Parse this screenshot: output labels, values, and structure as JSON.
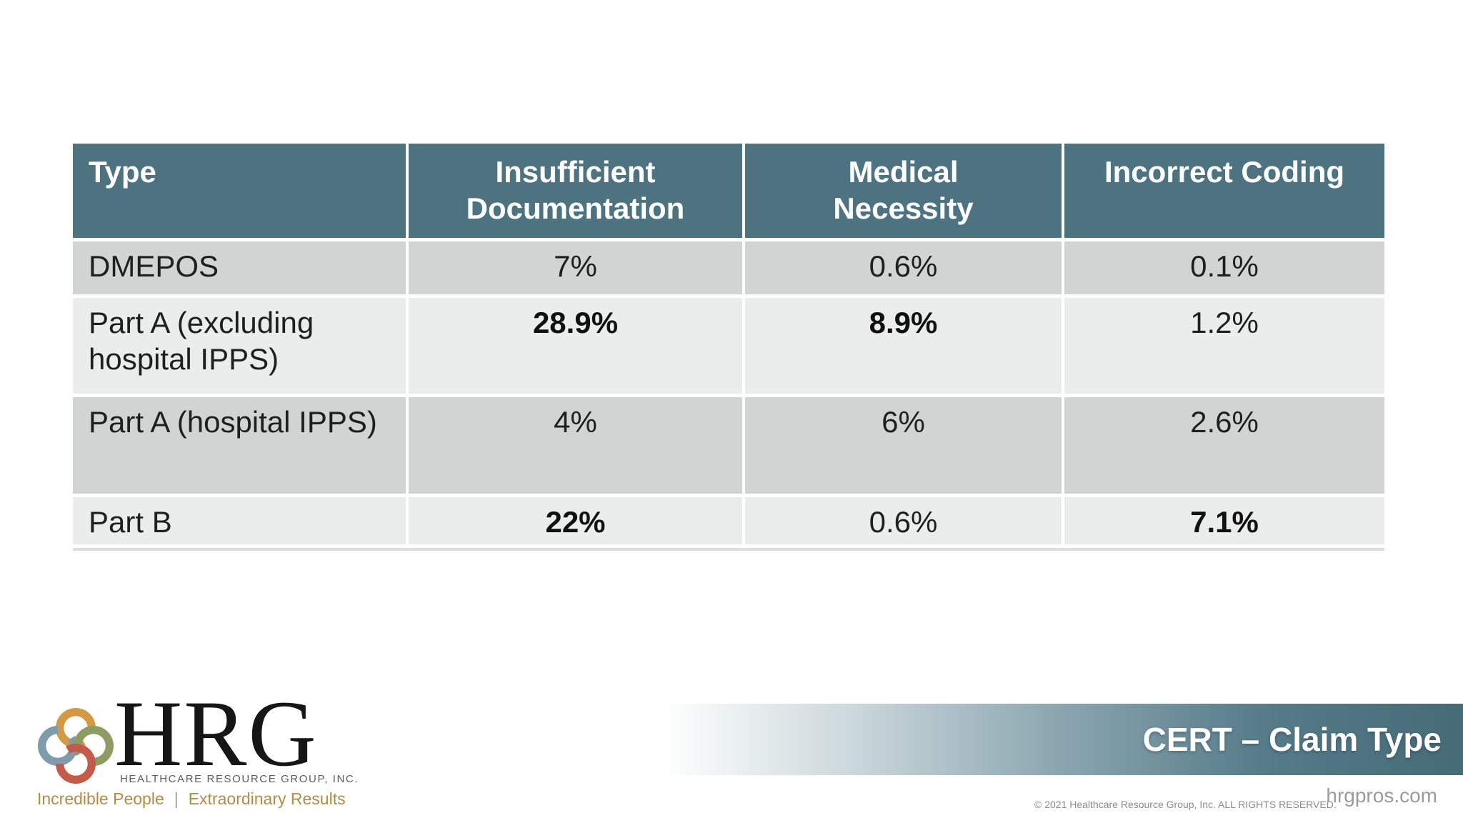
{
  "slide_title": "CERT – Claim Type",
  "table": {
    "columns": [
      "Type",
      "Insufficient Documentation",
      "Medical Necessity",
      "Incorrect Coding"
    ],
    "rows": [
      {
        "label": "DMEPOS",
        "values": [
          "7%",
          "0.6%",
          "0.1%"
        ],
        "bold": [
          false,
          false,
          false
        ]
      },
      {
        "label": "Part A (excluding hospital IPPS)",
        "values": [
          "28.9%",
          "8.9%",
          "1.2%"
        ],
        "bold": [
          true,
          true,
          false
        ]
      },
      {
        "label": "Part A (hospital IPPS)",
        "values": [
          "4%",
          "6%",
          "2.6%"
        ],
        "bold": [
          false,
          false,
          false
        ]
      },
      {
        "label": "Part B",
        "values": [
          "22%",
          "0.6%",
          "7.1%"
        ],
        "bold": [
          true,
          false,
          true
        ]
      }
    ]
  },
  "chart_data": {
    "type": "table",
    "title": "CERT – Claim Type",
    "categories": [
      "DMEPOS",
      "Part A (excluding hospital IPPS)",
      "Part A (hospital IPPS)",
      "Part B"
    ],
    "series": [
      {
        "name": "Insufficient Documentation",
        "values": [
          7,
          28.9,
          4,
          22
        ]
      },
      {
        "name": "Medical Necessity",
        "values": [
          0.6,
          8.9,
          6,
          0.6
        ]
      },
      {
        "name": "Incorrect Coding",
        "values": [
          0.1,
          1.2,
          2.6,
          7.1
        ]
      }
    ],
    "unit": "%"
  },
  "footer": {
    "banner_title": "CERT – Claim Type",
    "copyright": "© 2021 Healthcare Resource Group, Inc. ALL RIGHTS RESERVED.",
    "website": "hrgpros.com"
  },
  "logo": {
    "acronym": "HRG",
    "company": "HEALTHCARE RESOURCE GROUP, INC.",
    "tagline_left": "Incredible People",
    "tagline_separator": "|",
    "tagline_right": "Extraordinary Results"
  },
  "colors": {
    "header_teal": "#4d7381",
    "row_gray": "#d0d5d4",
    "row_light": "#ebedec",
    "banner_teal": "#456b77",
    "gold_text": "#b08c4a",
    "ring_gold": "#d49a43",
    "ring_blue": "#7e9cab",
    "ring_olive": "#8d9c63",
    "ring_red": "#c25b49"
  }
}
